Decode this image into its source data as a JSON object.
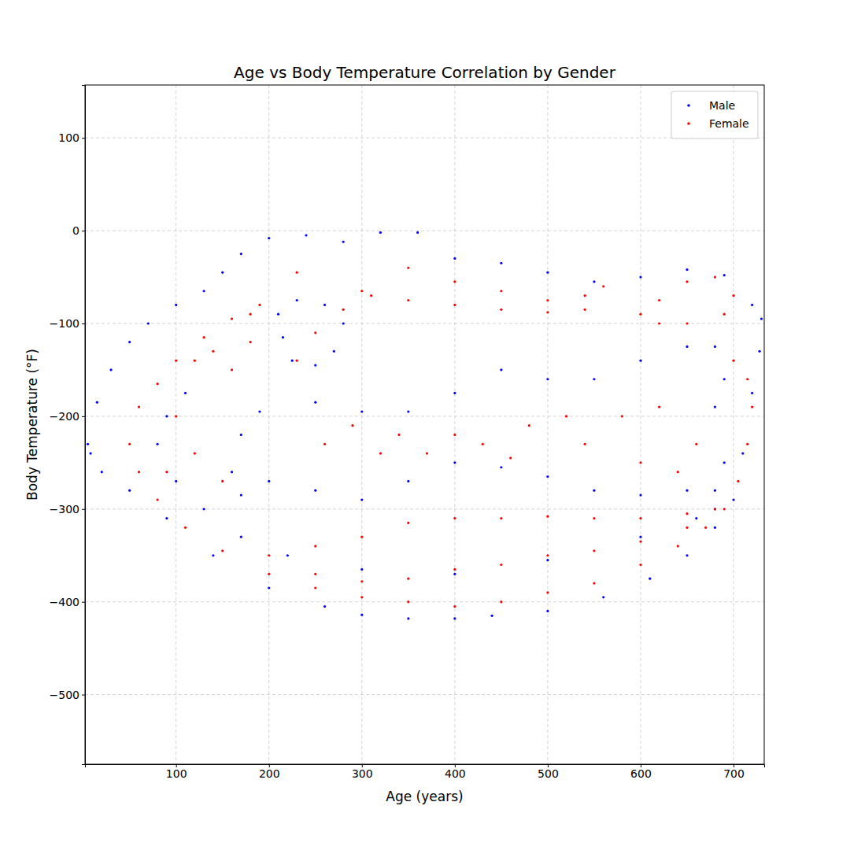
{
  "chart_data": {
    "type": "scatter",
    "title": "Age vs Body Temperature Correlation by Gender",
    "x_label": "Age (years)",
    "y_label": "Body Temperature (°F)",
    "xlim": [
      2,
      733
    ],
    "ylim": [
      -575,
      157
    ],
    "xticks": [
      100,
      200,
      300,
      400,
      500,
      600,
      700
    ],
    "yticks": [
      {
        "value": -500,
        "label": "−500"
      },
      {
        "value": -400,
        "label": "−400"
      },
      {
        "value": -300,
        "label": "−300"
      },
      {
        "value": -200,
        "label": "−200"
      },
      {
        "value": -100,
        "label": "−100"
      },
      0,
      100
    ],
    "grid": true,
    "legend": "upper right",
    "marker": "circle",
    "series": [
      {
        "name": "Male",
        "color": "#0000ff",
        "x": [
          5,
          15,
          30,
          50,
          70,
          100,
          130,
          150,
          170,
          200,
          240,
          280,
          320,
          360,
          400,
          450,
          500,
          550,
          600,
          650,
          690,
          720,
          730,
          728,
          720,
          710,
          700,
          680,
          650,
          610,
          560,
          500,
          440,
          400,
          350,
          300,
          260,
          200,
          140,
          90,
          50,
          20,
          8,
          80,
          90,
          110,
          100,
          130,
          170,
          220,
          300,
          400,
          500,
          600,
          660,
          680,
          210,
          230,
          260,
          280,
          270,
          250,
          225,
          215,
          190,
          250,
          300,
          350,
          400,
          450,
          500,
          550,
          600,
          650,
          680,
          690,
          680,
          690,
          680,
          650,
          600,
          550,
          500,
          450,
          400,
          350,
          300,
          250,
          200,
          170,
          160,
          170
        ],
        "values": [
          -230,
          -185,
          -150,
          -120,
          -100,
          -80,
          -65,
          -45,
          -25,
          -8,
          -5,
          -12,
          -2,
          -2,
          -30,
          -35,
          -45,
          -55,
          -50,
          -42,
          -48,
          -80,
          -95,
          -130,
          -175,
          -240,
          -290,
          -320,
          -350,
          -375,
          -395,
          -410,
          -415,
          -418,
          -418,
          -414,
          -405,
          -385,
          -350,
          -310,
          -280,
          -260,
          -240,
          -230,
          -200,
          -175,
          -270,
          -300,
          -330,
          -350,
          -365,
          -370,
          -355,
          -330,
          -310,
          -300,
          -90,
          -75,
          -80,
          -100,
          -130,
          -145,
          -140,
          -115,
          -195,
          -185,
          -195,
          -195,
          -175,
          -150,
          -160,
          -160,
          -140,
          -125,
          -125,
          -160,
          -190,
          -250,
          -280,
          -280,
          -285,
          -280,
          -265,
          -255,
          -250,
          -270,
          -290,
          -280,
          -270,
          -285,
          -260,
          -220
        ]
      },
      {
        "name": "Female",
        "color": "#ff0000",
        "x": [
          50,
          60,
          80,
          100,
          130,
          160,
          180,
          60,
          80,
          110,
          150,
          200,
          250,
          300,
          350,
          400,
          450,
          500,
          550,
          600,
          640,
          670,
          690,
          705,
          715,
          720,
          715,
          700,
          190,
          230,
          300,
          350,
          400,
          450,
          500,
          540,
          560,
          540,
          500,
          450,
          400,
          350,
          310,
          280,
          250,
          230,
          600,
          620,
          650,
          680,
          700,
          690,
          650,
          620,
          200,
          250,
          300,
          350,
          400,
          450,
          500,
          550,
          600,
          650,
          680,
          650,
          600,
          550,
          500,
          450,
          400,
          350,
          300,
          250,
          260,
          290,
          320,
          340,
          370,
          400,
          430,
          460,
          480,
          520,
          540,
          580,
          600,
          620,
          640,
          660,
          120,
          140,
          160,
          180,
          100,
          120,
          90,
          150
        ],
        "values": [
          -230,
          -190,
          -165,
          -140,
          -115,
          -95,
          -90,
          -260,
          -290,
          -320,
          -345,
          -370,
          -385,
          -395,
          -400,
          -405,
          -400,
          -390,
          -380,
          -360,
          -340,
          -320,
          -300,
          -270,
          -230,
          -190,
          -160,
          -140,
          -80,
          -45,
          -65,
          -40,
          -55,
          -65,
          -75,
          -70,
          -60,
          -85,
          -88,
          -85,
          -80,
          -75,
          -70,
          -85,
          -110,
          -140,
          -90,
          -75,
          -55,
          -50,
          -70,
          -90,
          -100,
          -100,
          -350,
          -340,
          -330,
          -315,
          -310,
          -310,
          -308,
          -310,
          -310,
          -305,
          -300,
          -320,
          -335,
          -345,
          -350,
          -360,
          -365,
          -375,
          -378,
          -370,
          -230,
          -210,
          -240,
          -220,
          -240,
          -220,
          -230,
          -245,
          -210,
          -200,
          -230,
          -200,
          -250,
          -190,
          -260,
          -230,
          -140,
          -130,
          -150,
          -120,
          -200,
          -240,
          -260,
          -270
        ]
      }
    ]
  }
}
